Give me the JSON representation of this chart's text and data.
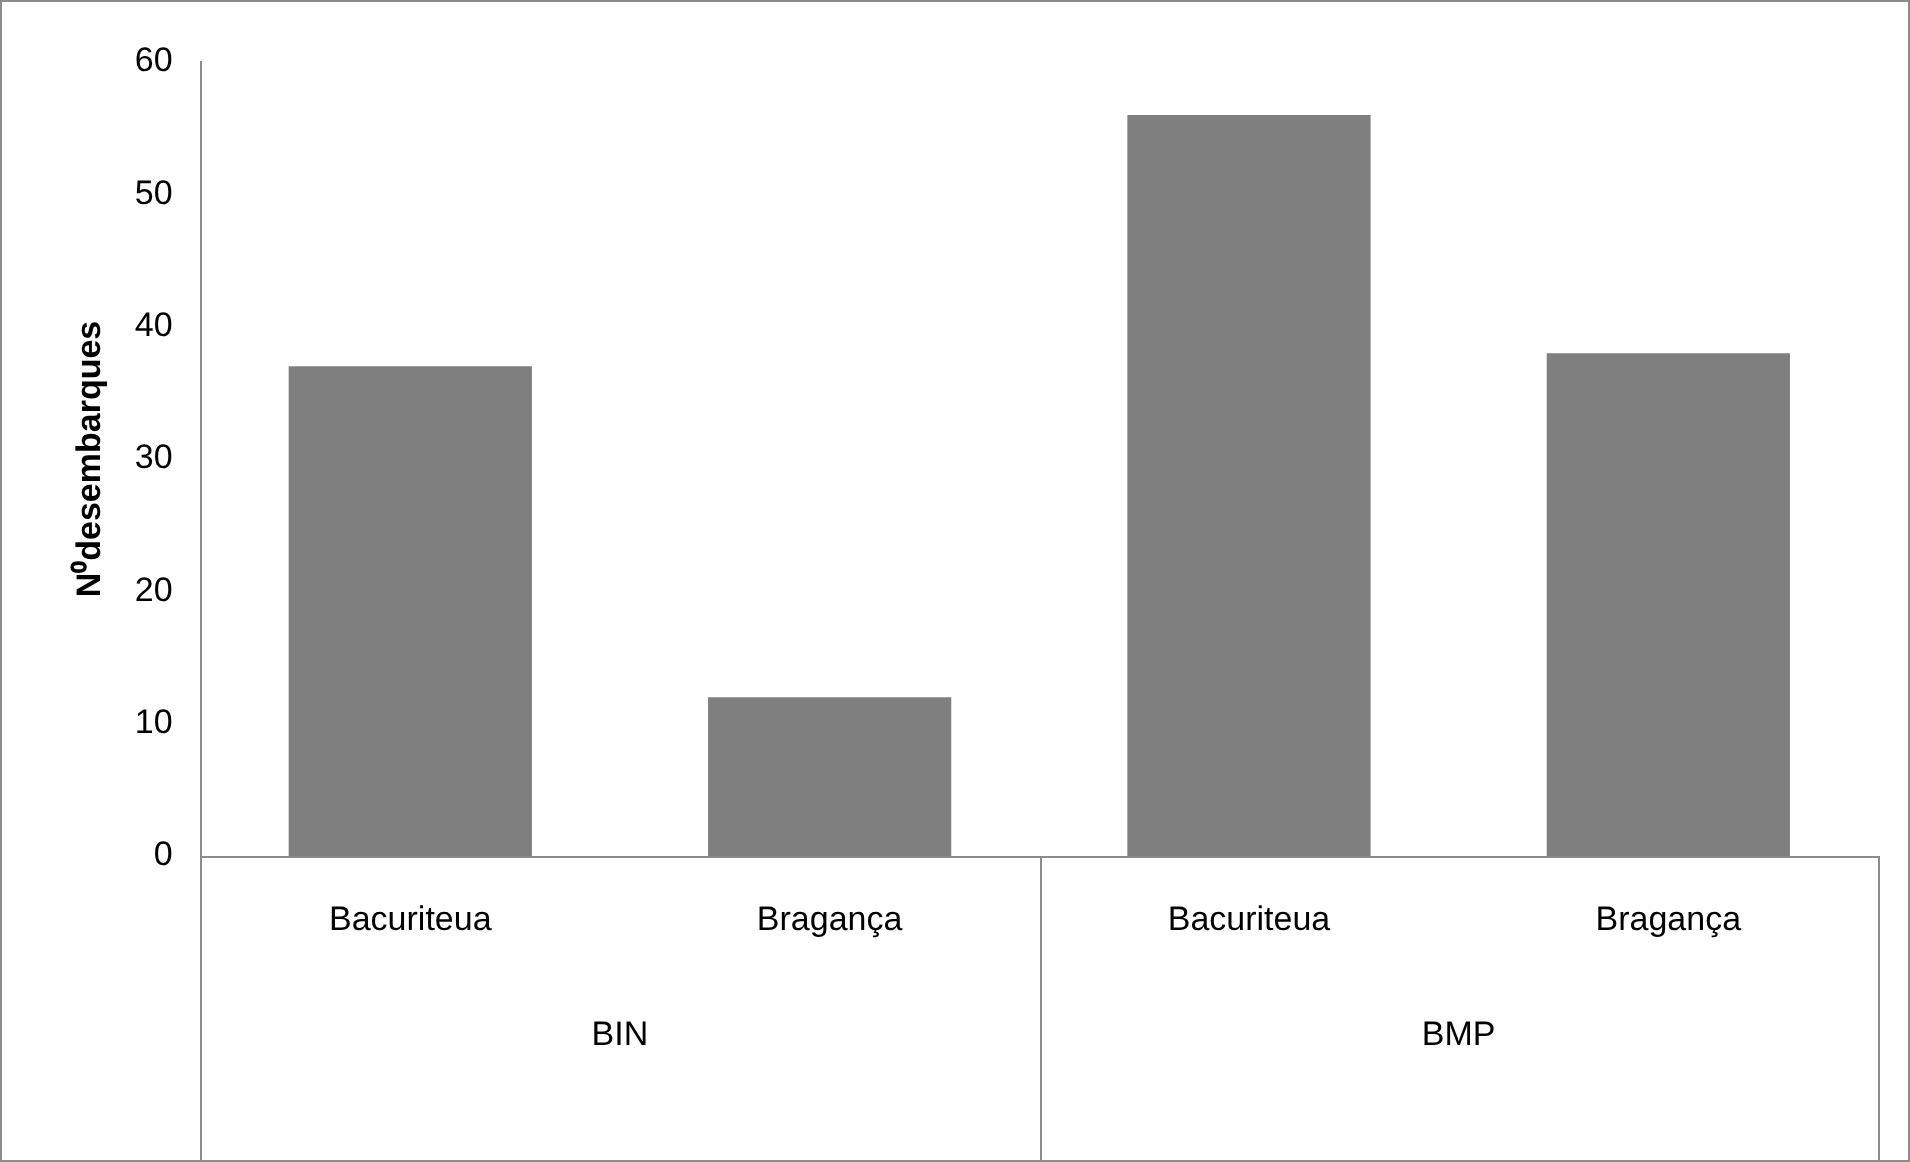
{
  "chart_data": {
    "type": "bar",
    "ylabel": "N⁰desembarques",
    "categories": [
      "Bacuriteua",
      "Bragança",
      "Bacuriteua",
      "Bragança"
    ],
    "values": [
      37,
      12,
      56,
      38
    ],
    "color": "#7f7f7f",
    "ylim": [
      0,
      60
    ],
    "yticks": [
      0,
      10,
      20,
      30,
      40,
      50,
      60
    ],
    "grid": false,
    "annotations": [
      "BIN",
      "BMP"
    ]
  }
}
